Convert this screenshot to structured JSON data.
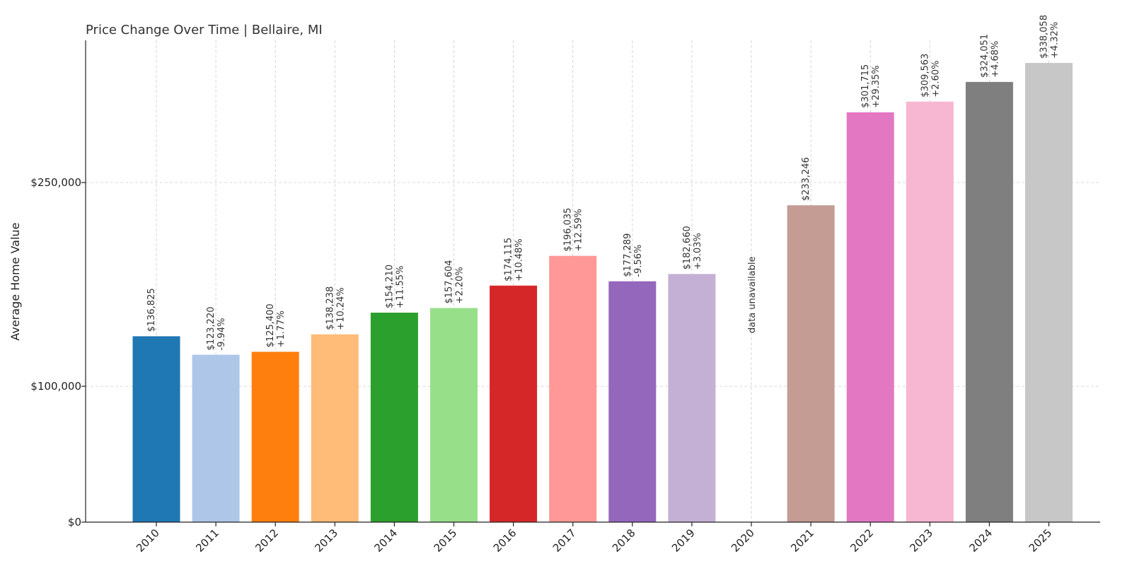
{
  "chart_data": {
    "type": "bar",
    "title": "Price Change Over Time | Bellaire, MI",
    "xlabel": "",
    "ylabel": "Average Home Value",
    "ylim": [
      0,
      360000
    ],
    "yticks": [
      {
        "value": 0,
        "label": "$0"
      },
      {
        "value": 100000,
        "label": "$100,000"
      },
      {
        "value": 250000,
        "label": "$250,000"
      }
    ],
    "grid": true,
    "categories": [
      "2010",
      "2011",
      "2012",
      "2013",
      "2014",
      "2015",
      "2016",
      "2017",
      "2018",
      "2019",
      "2020",
      "2021",
      "2022",
      "2023",
      "2024",
      "2025"
    ],
    "values": [
      136825,
      123220,
      125400,
      138238,
      154210,
      157604,
      174115,
      196035,
      177289,
      182660,
      null,
      233246,
      301715,
      309563,
      324051,
      338058
    ],
    "value_labels": [
      "$136,825",
      "$123,220",
      "$125,400",
      "$138,238",
      "$154,210",
      "$157,604",
      "$174,115",
      "$196,035",
      "$177,289",
      "$182,660",
      "",
      "$233,246",
      "$301,715",
      "$309,563",
      "$324,051",
      "$338,058"
    ],
    "change_labels": [
      "",
      "-9.94%",
      "+1.77%",
      "+10.24%",
      "+11.55%",
      "+2.20%",
      "+10.48%",
      "+12.59%",
      "-9.56%",
      "+3.03%",
      "",
      "",
      "+29.35%",
      "+2.60%",
      "+4.68%",
      "+4.32%"
    ],
    "missing_label": "data unavailable",
    "colors": [
      "#1f77b4",
      "#aec7e8",
      "#ff7f0e",
      "#ffbb78",
      "#2ca02c",
      "#98df8a",
      "#d62728",
      "#ff9896",
      "#9467bd",
      "#c5b0d5",
      "#8c564b",
      "#c49c94",
      "#e377c2",
      "#f7b6d2",
      "#7f7f7f",
      "#c7c7c7"
    ]
  }
}
